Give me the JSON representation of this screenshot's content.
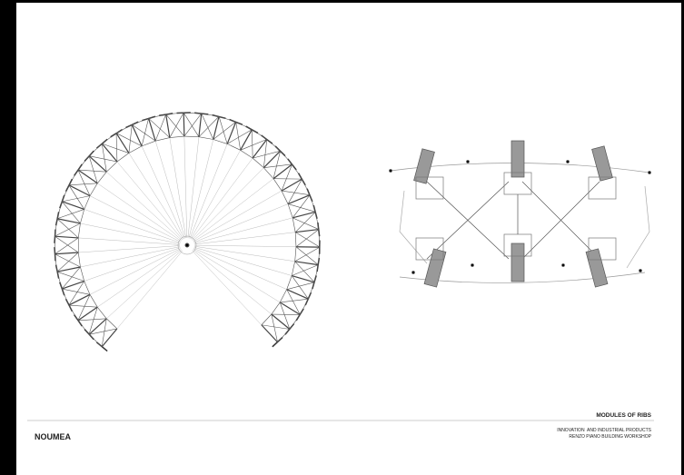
{
  "project": "NOUMEA",
  "sheet_title": "MODULES OF RIBS",
  "credits": [
    "INNOVATION  AND INDUSTRIAL PRODUCTS",
    "RENZO PIANO BUILDING WORKSHOP"
  ]
}
